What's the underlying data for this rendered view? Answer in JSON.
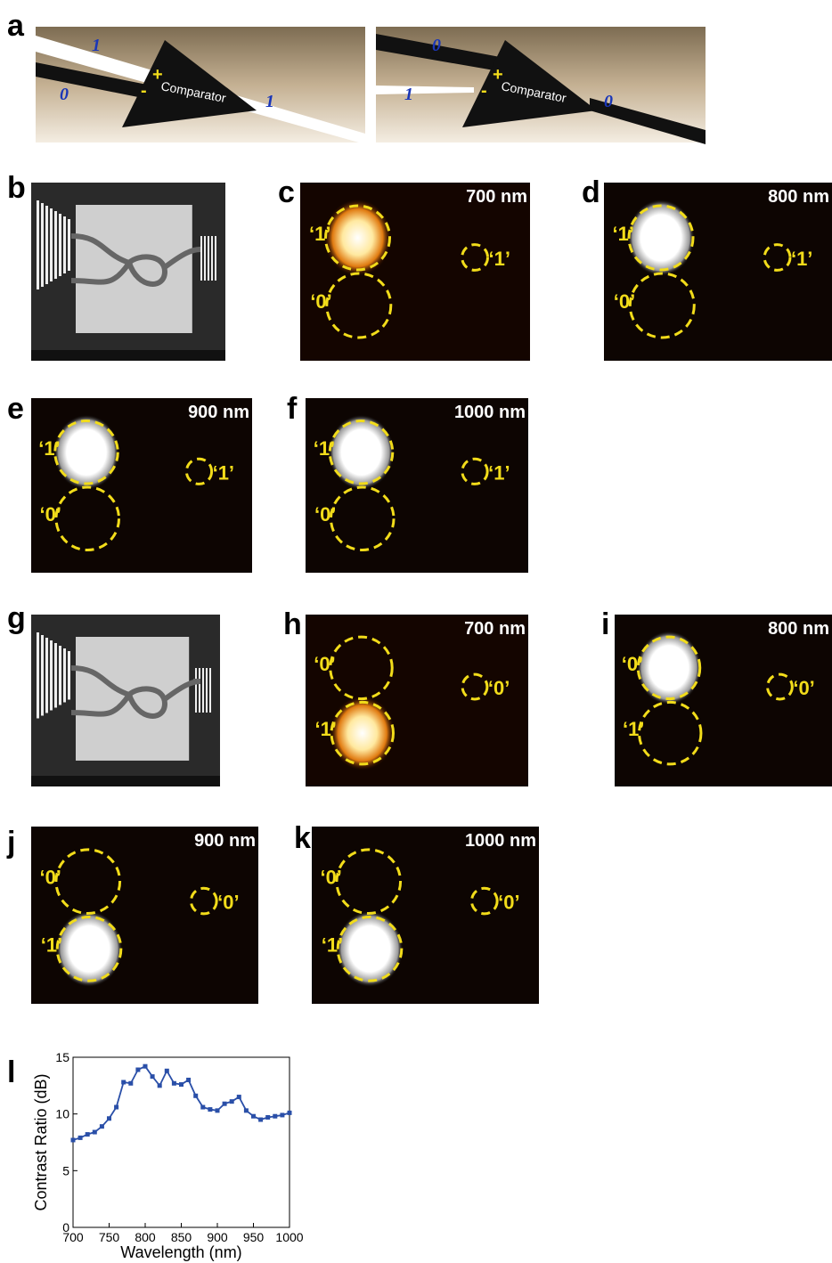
{
  "panel_a": {
    "letter": "a",
    "left": {
      "top_input": "1",
      "bottom_input": "0",
      "plus": "+",
      "minus": "-",
      "device": "Comparator",
      "output": "1"
    },
    "right": {
      "top_input": "0",
      "bottom_input": "1",
      "plus": "+",
      "minus": "-",
      "device": "Comparator",
      "output": "0"
    }
  },
  "sem": [
    {
      "letter": "b"
    },
    {
      "letter": "g"
    }
  ],
  "optical": [
    {
      "letter": "c",
      "wavelength": "700 nm",
      "top": "‘1’",
      "bottom": "‘0’",
      "right": "‘1’"
    },
    {
      "letter": "d",
      "wavelength": "800 nm",
      "top": "‘1’",
      "bottom": "‘0’",
      "right": "‘1’"
    },
    {
      "letter": "e",
      "wavelength": "900 nm",
      "top": "‘1’",
      "bottom": "‘0’",
      "right": "‘1’"
    },
    {
      "letter": "f",
      "wavelength": "1000 nm",
      "top": "‘1’",
      "bottom": "‘0’",
      "right": "‘1’"
    },
    {
      "letter": "h",
      "wavelength": "700 nm",
      "top": "‘0’",
      "bottom": "‘1’",
      "right": "‘0’"
    },
    {
      "letter": "i",
      "wavelength": "800 nm",
      "top": "‘0’",
      "bottom": "‘1’",
      "right": "‘0’"
    },
    {
      "letter": "j",
      "wavelength": "900 nm",
      "top": "‘0’",
      "bottom": "‘1’",
      "right": "‘0’"
    },
    {
      "letter": "k",
      "wavelength": "1000 nm",
      "top": "‘0’",
      "bottom": "‘1’",
      "right": "‘0’"
    }
  ],
  "chart_data": {
    "type": "line",
    "panel_label": "l",
    "x_label": "Wavelength (nm)",
    "y_label": "Contrast Ratio (dB)",
    "x": [
      700,
      710,
      720,
      730,
      740,
      750,
      760,
      770,
      780,
      790,
      800,
      810,
      820,
      830,
      840,
      850,
      860,
      870,
      880,
      890,
      900,
      910,
      920,
      930,
      940,
      950,
      960,
      970,
      980,
      990,
      1000
    ],
    "values": [
      7.7,
      7.9,
      8.2,
      8.4,
      8.9,
      9.6,
      10.6,
      12.8,
      12.7,
      13.9,
      14.2,
      13.3,
      12.5,
      13.8,
      12.7,
      12.6,
      13.0,
      11.6,
      10.6,
      10.4,
      10.3,
      10.9,
      11.1,
      11.5,
      10.3,
      9.8,
      9.5,
      9.7,
      9.8,
      9.9,
      10.1
    ],
    "color": "#2a4fa8",
    "xlim": [
      700,
      1000
    ],
    "xticks": [
      700,
      750,
      800,
      850,
      900,
      950,
      1000
    ],
    "ylim": [
      0,
      15
    ],
    "yticks": [
      0,
      5,
      10,
      15
    ]
  }
}
